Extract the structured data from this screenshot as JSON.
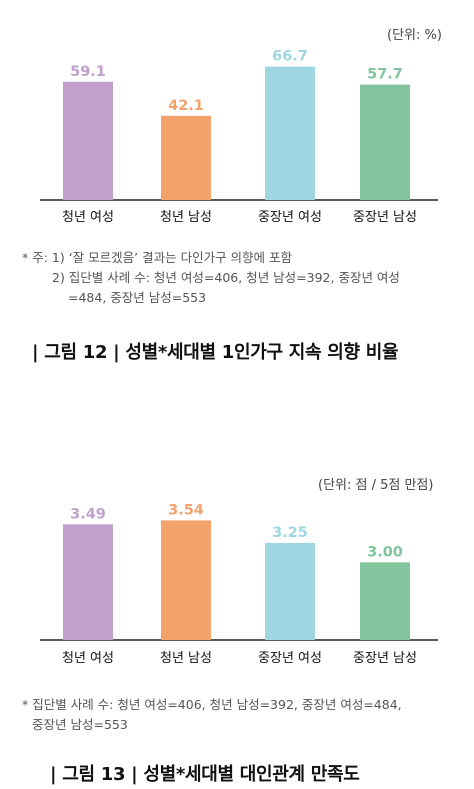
{
  "chart_data": [
    {
      "type": "bar",
      "unit_label": "(단위: %)",
      "categories": [
        "청년 여성",
        "청년 남성",
        "중장년 여성",
        "중장년 남성"
      ],
      "values": [
        59.1,
        42.1,
        66.7,
        57.7
      ],
      "value_labels": [
        "59.1",
        "42.1",
        "66.7",
        "57.7"
      ],
      "colors": [
        "#c3a0cb",
        "#f4a26c",
        "#9ed6e2",
        "#82c59d"
      ],
      "ylim": [
        0,
        75
      ],
      "title": "| 그림 12 | 성별*세대별 1인가구 지속 의향 비율",
      "notes": [
        "* 주: 1) ‘잘 모르겠음’ 결과는 다인가구 의향에 포함",
        "2) 집단별 사례 수: 청년 여성=406, 청년 남성=392, 중장년  여성",
        "=484, 중장년 남성=553"
      ]
    },
    {
      "type": "bar",
      "unit_label": "(단위: 점  / 5점 만점)",
      "categories": [
        "청년 여성",
        "청년 남성",
        "중장년 여성",
        "중장년 남성"
      ],
      "values": [
        3.49,
        3.54,
        3.25,
        3.0
      ],
      "value_labels": [
        "3.49",
        "3.54",
        "3.25",
        "3.00"
      ],
      "colors": [
        "#c3a0cb",
        "#f4a26c",
        "#9ed6e2",
        "#82c59d"
      ],
      "ylim": [
        2.0,
        3.7
      ],
      "title": "| 그림 13 | 성별*세대별 대인관계 만족도",
      "notes": [
        "* 집단별 사례 수: 청년 여성=406, 청년 남성=392, 중장년 여성=484,",
        "중장년 남성=553"
      ]
    }
  ]
}
